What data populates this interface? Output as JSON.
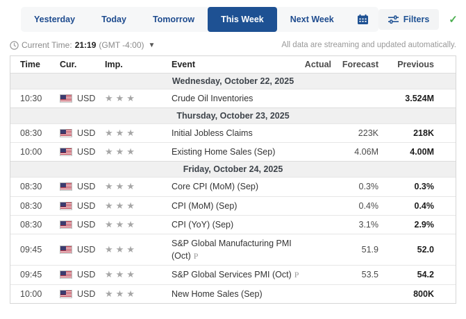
{
  "colors": {
    "navy": "#1e5193",
    "tab_text": "#1e4b8e",
    "green_check": "#4caf50",
    "star_gray": "#a6a6a6",
    "date_band_bg": "#f0f0f0"
  },
  "nav": {
    "tabs": [
      {
        "label": "Yesterday",
        "active": false
      },
      {
        "label": "Today",
        "active": false
      },
      {
        "label": "Tomorrow",
        "active": false
      },
      {
        "label": "This Week",
        "active": true
      },
      {
        "label": "Next Week",
        "active": false
      }
    ],
    "calendar_icon": "calendar-icon",
    "filters_label": "Filters",
    "check_icon": "checkmark-icon"
  },
  "status": {
    "clock_icon": "clock-icon",
    "current_time_label": "Current Time:",
    "current_time": "21:19",
    "timezone": "(GMT -4:00)",
    "chevron_icon": "chevron-down-icon",
    "note": "All data are streaming and updated automatically."
  },
  "table": {
    "headers": [
      "Time",
      "Cur.",
      "Imp.",
      "Event",
      "Actual",
      "Forecast",
      "Previous"
    ],
    "groups": [
      {
        "date": "Wednesday, October 22, 2025",
        "rows": [
          {
            "time": "10:30",
            "currency": "USD",
            "importance": 3,
            "event": "Crude Oil Inventories",
            "preliminary": false,
            "actual": "",
            "forecast": "",
            "previous": "3.524M"
          }
        ]
      },
      {
        "date": "Thursday, October 23, 2025",
        "rows": [
          {
            "time": "08:30",
            "currency": "USD",
            "importance": 3,
            "event": "Initial Jobless Claims",
            "preliminary": false,
            "actual": "",
            "forecast": "223K",
            "previous": "218K"
          },
          {
            "time": "10:00",
            "currency": "USD",
            "importance": 3,
            "event": "Existing Home Sales (Sep)",
            "preliminary": false,
            "actual": "",
            "forecast": "4.06M",
            "previous": "4.00M"
          }
        ]
      },
      {
        "date": "Friday, October 24, 2025",
        "rows": [
          {
            "time": "08:30",
            "currency": "USD",
            "importance": 3,
            "event": "Core CPI (MoM) (Sep)",
            "preliminary": false,
            "actual": "",
            "forecast": "0.3%",
            "previous": "0.3%"
          },
          {
            "time": "08:30",
            "currency": "USD",
            "importance": 3,
            "event": "CPI (MoM) (Sep)",
            "preliminary": false,
            "actual": "",
            "forecast": "0.4%",
            "previous": "0.4%"
          },
          {
            "time": "08:30",
            "currency": "USD",
            "importance": 3,
            "event": "CPI (YoY) (Sep)",
            "preliminary": false,
            "actual": "",
            "forecast": "3.1%",
            "previous": "2.9%"
          },
          {
            "time": "09:45",
            "currency": "USD",
            "importance": 3,
            "event": "S&P Global Manufacturing PMI (Oct)",
            "preliminary": true,
            "actual": "",
            "forecast": "51.9",
            "previous": "52.0"
          },
          {
            "time": "09:45",
            "currency": "USD",
            "importance": 3,
            "event": "S&P Global Services PMI (Oct)",
            "preliminary": true,
            "actual": "",
            "forecast": "53.5",
            "previous": "54.2"
          },
          {
            "time": "10:00",
            "currency": "USD",
            "importance": 3,
            "event": "New Home Sales (Sep)",
            "preliminary": false,
            "actual": "",
            "forecast": "",
            "previous": "800K"
          }
        ]
      }
    ]
  }
}
